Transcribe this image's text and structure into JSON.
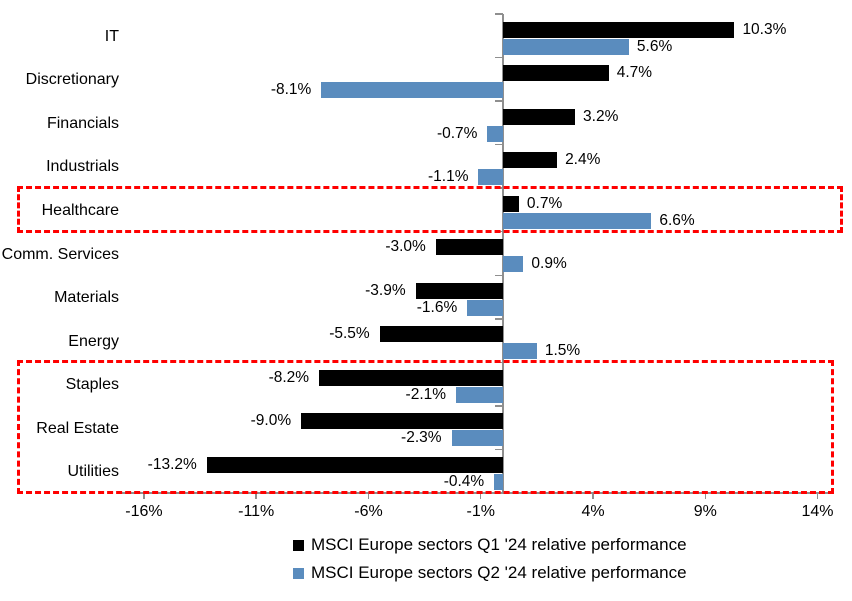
{
  "chart_data": {
    "type": "bar",
    "orientation": "horizontal",
    "categories": [
      "IT",
      "Discretionary",
      "Financials",
      "Industrials",
      "Healthcare",
      "Comm. Services",
      "Materials",
      "Energy",
      "Staples",
      "Real Estate",
      "Utilities"
    ],
    "series": [
      {
        "name": "MSCI Europe sectors Q1 '24 relative performance",
        "color": "#000000",
        "values": [
          10.3,
          4.7,
          3.2,
          2.4,
          0.7,
          -3.0,
          -3.9,
          -5.5,
          -8.2,
          -9.0,
          -13.2
        ],
        "labels": [
          "10.3%",
          "4.7%",
          "3.2%",
          "2.4%",
          "0.7%",
          "-3.0%",
          "-3.9%",
          "-5.5%",
          "-8.2%",
          "-9.0%",
          "-13.2%"
        ]
      },
      {
        "name": "MSCI Europe sectors Q2 '24 relative performance",
        "color": "#5A8CBE",
        "values": [
          5.6,
          -8.1,
          -0.7,
          -1.1,
          6.6,
          0.9,
          -1.6,
          1.5,
          -2.1,
          -2.3,
          -0.4
        ],
        "labels": [
          "5.6%",
          "-8.1%",
          "-0.7%",
          "-1.1%",
          "6.6%",
          "0.9%",
          "-1.6%",
          "1.5%",
          "-2.1%",
          "-2.3%",
          "-0.4%"
        ]
      }
    ],
    "x_axis": {
      "min": -17.2,
      "max": 14.6,
      "ticks": [
        -16,
        -11,
        -6,
        -1,
        4,
        9,
        14
      ],
      "tick_labels": [
        "-16%",
        "-11%",
        "-6%",
        "-1%",
        "4%",
        "9%",
        "14%"
      ]
    },
    "grid": false,
    "legend_position": "bottom",
    "axis_color": "#8F8F8F",
    "highlight_color": "#FF0000",
    "highlights": [
      {
        "name": "healthcare-highlight",
        "categories": [
          "Healthcare"
        ],
        "start_row": 4,
        "end_row": 4
      },
      {
        "name": "defensives-highlight",
        "categories": [
          "Staples",
          "Real Estate",
          "Utilities"
        ],
        "start_row": 8,
        "end_row": 10
      }
    ]
  }
}
